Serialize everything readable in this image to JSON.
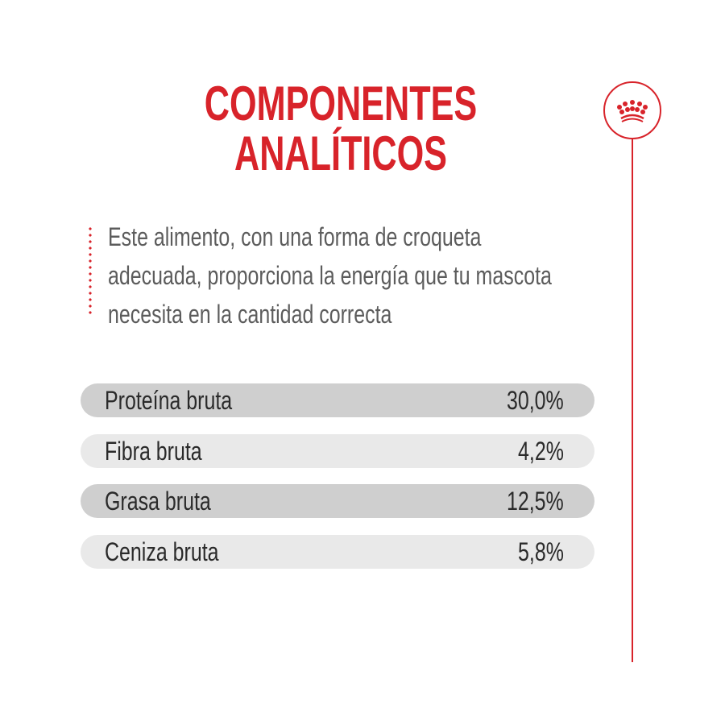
{
  "title": {
    "line1": "COMPONENTES",
    "line2": "ANALÍTICOS"
  },
  "description": {
    "lines": [
      "Este alimento, con una forma de croqueta",
      "adecuada, proporciona la energía que tu mascota",
      "necesita en la cantidad correcta"
    ]
  },
  "components": [
    {
      "label": "Proteína bruta",
      "value": "30,0%"
    },
    {
      "label": "Fibra bruta",
      "value": "4,2%"
    },
    {
      "label": "Grasa bruta",
      "value": "12,5%"
    },
    {
      "label": "Ceniza bruta",
      "value": "5,8%"
    }
  ],
  "icon": "crown-icon",
  "colors": {
    "accent": "#d8232a",
    "text": "#5c5c5c",
    "row_dark": "#cfcfcf",
    "row_light": "#e9e9e9"
  }
}
